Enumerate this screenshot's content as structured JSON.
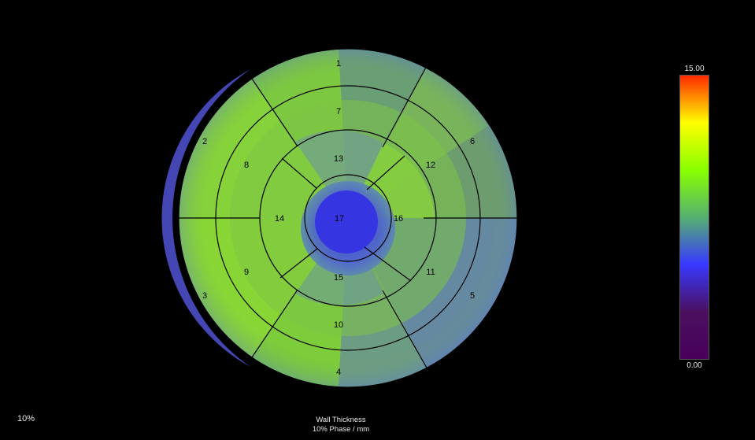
{
  "bullseye": {
    "segments": [
      {
        "id": "1",
        "label": "1"
      },
      {
        "id": "2",
        "label": "2"
      },
      {
        "id": "3",
        "label": "3"
      },
      {
        "id": "4",
        "label": "4"
      },
      {
        "id": "5",
        "label": "5"
      },
      {
        "id": "6",
        "label": "6"
      },
      {
        "id": "7",
        "label": "7"
      },
      {
        "id": "8",
        "label": "8"
      },
      {
        "id": "9",
        "label": "9"
      },
      {
        "id": "10",
        "label": "10"
      },
      {
        "id": "11",
        "label": "11"
      },
      {
        "id": "12",
        "label": "12"
      },
      {
        "id": "13",
        "label": "13"
      },
      {
        "id": "14",
        "label": "14"
      },
      {
        "id": "15",
        "label": "15"
      },
      {
        "id": "16",
        "label": "16"
      },
      {
        "id": "17",
        "label": "17"
      }
    ]
  },
  "colorbar": {
    "max_label": "15.00",
    "min_label": "0.00",
    "stops": [
      "#ff2a00",
      "#ffff00",
      "#88ff00",
      "#55b070",
      "#3838ff",
      "#4a1060",
      "#48005a"
    ]
  },
  "phase_label": "10%",
  "caption": {
    "line1": "Wall Thickness",
    "line2": "10% Phase / mm"
  }
}
